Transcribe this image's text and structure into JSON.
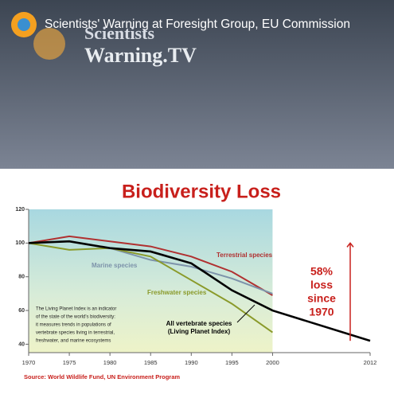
{
  "video_title": "Scientists' Warning at Foresight Group, EU Commission",
  "logo": [
    "Scientists",
    "Warning.TV"
  ],
  "chart_data": {
    "type": "line",
    "title": "Biodiversity Loss",
    "x": [
      1970,
      1975,
      1980,
      1985,
      1990,
      1995,
      2000,
      2012
    ],
    "xlim": [
      1970,
      2012
    ],
    "xticks": [
      1970,
      1975,
      1980,
      1985,
      1990,
      1995,
      2000,
      2012
    ],
    "ylim": [
      35,
      120
    ],
    "yticks": [
      40,
      60,
      80,
      100,
      120
    ],
    "series": [
      {
        "name": "Terrestrial species",
        "color": "#b03030",
        "values": [
          100,
          104,
          101,
          98,
          92,
          83,
          69,
          null
        ]
      },
      {
        "name": "Marine species",
        "color": "#7d93aa",
        "values": [
          100,
          101,
          97,
          90,
          86,
          79,
          70,
          null
        ]
      },
      {
        "name": "Freshwater species",
        "color": "#8a9a2a",
        "values": [
          100,
          96,
          97,
          92,
          78,
          64,
          47,
          null
        ]
      },
      {
        "name": "All vertebrate species (Living Planet Index)",
        "color": "#000000",
        "values": [
          100,
          101,
          97,
          95,
          88,
          72,
          60,
          42
        ]
      }
    ],
    "annotation": [
      "58%",
      "loss",
      "since",
      "1970"
    ],
    "note": [
      "The Living Planet Index is an indicator",
      "of the state of the world's biodiversity:",
      "it measures trends in populations of",
      "vertebrate species living in terrestrial,",
      "freshwater, and marine ecosystems"
    ],
    "source": "Source: World Wildlife Fund, UN Environment Program"
  }
}
